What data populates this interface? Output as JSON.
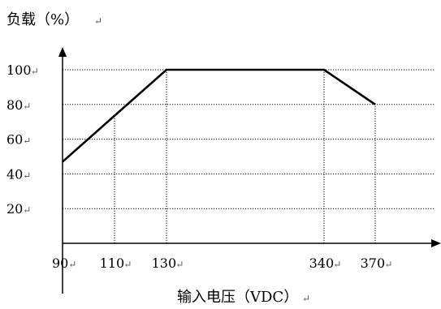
{
  "chart_data": {
    "type": "line",
    "ylabel": "负载（%）",
    "xlabel": "输入电压（VDC）",
    "x_ticks": [
      {
        "value": 90,
        "label": "90"
      },
      {
        "value": 110,
        "label": "110"
      },
      {
        "value": 130,
        "label": "130"
      },
      {
        "value": 340,
        "label": "340"
      },
      {
        "value": 370,
        "label": "370"
      }
    ],
    "y_ticks": [
      {
        "value": 20,
        "label": "20"
      },
      {
        "value": 40,
        "label": "40"
      },
      {
        "value": 60,
        "label": "60"
      },
      {
        "value": 80,
        "label": "80"
      },
      {
        "value": 100,
        "label": "100"
      }
    ],
    "series": [
      {
        "points": [
          {
            "x": 90,
            "y": 47
          },
          {
            "x": 130,
            "y": 100
          },
          {
            "x": 340,
            "y": 100
          },
          {
            "x": 370,
            "y": 80
          }
        ]
      }
    ],
    "grid": true,
    "x_axis": "non-linear (labeled positions only)",
    "ylim": [
      0,
      100
    ]
  },
  "colors": {
    "line": "#000000",
    "grid": "#000000",
    "text": "#000000"
  }
}
